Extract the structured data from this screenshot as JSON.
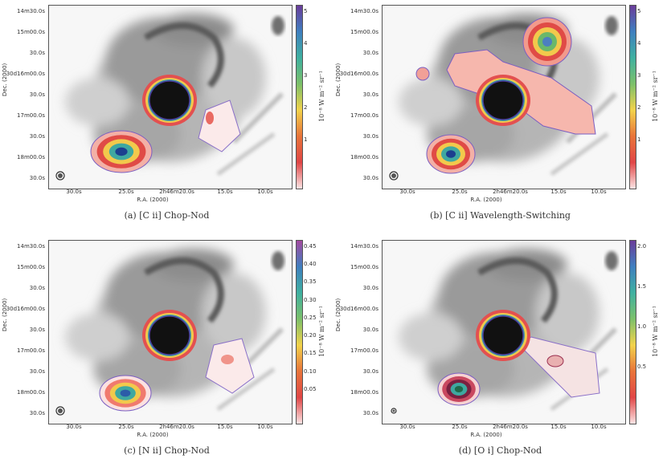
{
  "figure": {
    "panels": [
      {
        "caption": "(a) [C ii] Chop-Nod",
        "colorbar_ticks": [
          "5",
          "4",
          "3",
          "2",
          "1"
        ],
        "colorbar_gradient": [
          "#6a3d9a",
          "#3f7fbf",
          "#3fb0a0",
          "#7cc06a",
          "#f2d24b",
          "#e8743a",
          "#e04646",
          "#fbe3e3"
        ],
        "colorbar_unit": "10⁻⁸ W m⁻² sr⁻¹",
        "dec_ticks": [
          "14m30.0s",
          "15m00.0s",
          "30.0s",
          "30d16m00.0s",
          "30.0s",
          "17m00.0s",
          "30.0s",
          "18m00.0s",
          "30.0s"
        ],
        "ra_ticks": [
          "30.0s",
          "25.0s",
          "2h46m20.0s",
          "15.0s",
          "10.0s"
        ],
        "ra_label": "R.A. (2000)",
        "dec_label": "Dec. (2000)"
      },
      {
        "caption": "(b) [C ii] Wavelength-Switching",
        "colorbar_ticks": [
          "5",
          "4",
          "3",
          "2",
          "1"
        ],
        "colorbar_gradient": [
          "#6a3d9a",
          "#3f7fbf",
          "#3fb0a0",
          "#7cc06a",
          "#f2d24b",
          "#e8743a",
          "#e04646",
          "#fbe3e3"
        ],
        "colorbar_unit": "10⁻⁸ W m⁻² sr⁻¹",
        "dec_ticks": [
          "14m30.0s",
          "15m00.0s",
          "30.0s",
          "30d16m00.0s",
          "30.0s",
          "17m00.0s",
          "30.0s",
          "18m00.0s",
          "30.0s"
        ],
        "ra_ticks": [
          "30.0s",
          "25.0s",
          "2h46m20.0s",
          "15.0s",
          "10.0s"
        ],
        "ra_label": "R.A. (2000)",
        "dec_label": "Dec. (2000)"
      },
      {
        "caption": "(c) [N ii] Chop-Nod",
        "colorbar_ticks": [
          "0.45",
          "0.40",
          "0.35",
          "0.30",
          "0.25",
          "0.20",
          "0.15",
          "0.10",
          "0.05"
        ],
        "colorbar_gradient": [
          "#a44aa0",
          "#3f7fbf",
          "#3fb0a0",
          "#7cc06a",
          "#f2d24b",
          "#e8743a",
          "#e04646",
          "#fbe3e3"
        ],
        "colorbar_unit": "10⁻⁸ W m⁻² sr⁻¹",
        "dec_ticks": [
          "14m30.0s",
          "15m00.0s",
          "30.0s",
          "30d16m00.0s",
          "30.0s",
          "17m00.0s",
          "30.0s",
          "18m00.0s",
          "30.0s"
        ],
        "ra_ticks": [
          "30.0s",
          "25.0s",
          "2h46m20.0s",
          "15.0s",
          "10.0s"
        ],
        "ra_label": "R.A. (2000)",
        "dec_label": "Dec. (2000)"
      },
      {
        "caption": "(d) [O i] Chop-Nod",
        "colorbar_ticks": [
          "2.0",
          "1.5",
          "1.0",
          "0.5"
        ],
        "colorbar_gradient": [
          "#6a3d9a",
          "#3f7fbf",
          "#3fb0a0",
          "#7cc06a",
          "#f2d24b",
          "#e8743a",
          "#e04646",
          "#fbe3e3"
        ],
        "colorbar_unit": "10⁻⁸ W m⁻² sr⁻¹",
        "dec_ticks": [
          "14m30.0s",
          "15m00.0s",
          "30.0s",
          "30d16m00.0s",
          "30.0s",
          "17m00.0s",
          "30.0s",
          "18m00.0s",
          "30.0s"
        ],
        "ra_ticks": [
          "30.0s",
          "25.0s",
          "2h46m20.0s",
          "15.0s",
          "10.0s"
        ],
        "ra_label": "R.A. (2000)",
        "dec_label": "Dec. (2000)"
      }
    ]
  }
}
